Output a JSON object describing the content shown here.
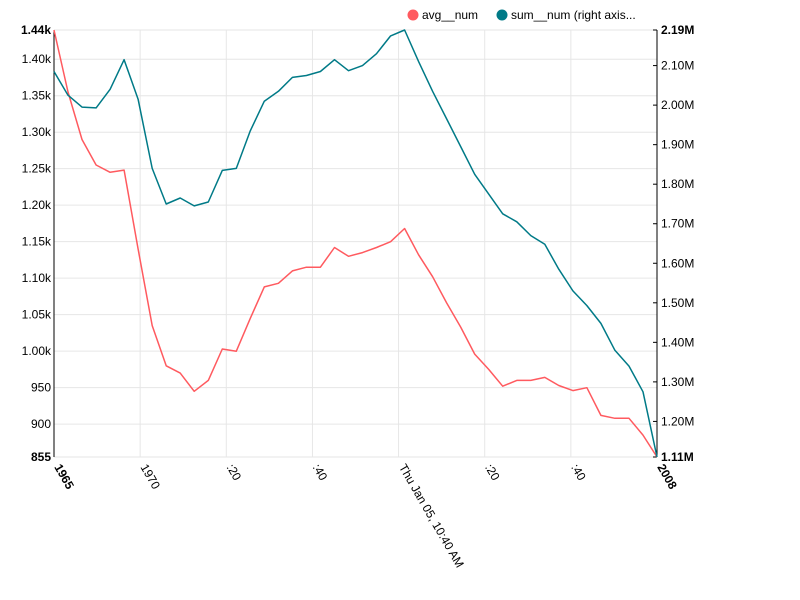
{
  "chart_data": {
    "type": "line",
    "grid": true,
    "legend_position": "top-right",
    "x_ticks": [
      "1965",
      "1970",
      ":20",
      ":40",
      "Thu Jan 05, 10:40 AM",
      ":20",
      ":40",
      "2008"
    ],
    "x": [
      1965,
      1966,
      1967,
      1968,
      1969,
      1970,
      1971,
      1972,
      1973,
      1974,
      1975,
      1976,
      1977,
      1978,
      1979,
      1980,
      1981,
      1982,
      1983,
      1984,
      1985,
      1986,
      1987,
      1988,
      1989,
      1990,
      1991,
      1992,
      1993,
      1994,
      1995,
      1996,
      1997,
      1998,
      1999,
      2000,
      2001,
      2002,
      2003,
      2004,
      2005,
      2006,
      2007,
      2008
    ],
    "xlim": [
      1965,
      2008
    ],
    "y_left": {
      "ticks": [
        "855",
        "900",
        "950",
        "1.00k",
        "1.05k",
        "1.10k",
        "1.15k",
        "1.20k",
        "1.25k",
        "1.30k",
        "1.35k",
        "1.40k",
        "1.44k"
      ],
      "tick_values": [
        855,
        900,
        950,
        1000,
        1050,
        1100,
        1150,
        1200,
        1250,
        1300,
        1350,
        1400,
        1440
      ],
      "ylim": [
        855,
        1440
      ]
    },
    "y_right": {
      "ticks": [
        "1.11M",
        "1.20M",
        "1.30M",
        "1.40M",
        "1.50M",
        "1.60M",
        "1.70M",
        "1.80M",
        "1.90M",
        "2.00M",
        "2.10M",
        "2.19M"
      ],
      "tick_values": [
        1110000,
        1200000,
        1300000,
        1400000,
        1500000,
        1600000,
        1700000,
        1800000,
        1900000,
        2000000,
        2100000,
        2190000
      ],
      "ylim": [
        1110000,
        2190000
      ]
    },
    "series": [
      {
        "name": "avg__num",
        "color": "#ff5a5f",
        "axis": "left",
        "values": [
          1440,
          1355,
          1290,
          1255,
          1245,
          1248,
          1140,
          1035,
          980,
          970,
          945,
          960,
          1003,
          1000,
          1045,
          1088,
          1093,
          1110,
          1115,
          1115,
          1142,
          1130,
          1135,
          1142,
          1150,
          1168,
          1132,
          1102,
          1066,
          1033,
          996,
          975,
          952,
          960,
          960,
          964,
          953,
          946,
          950,
          912,
          908,
          908,
          885,
          855
        ]
      },
      {
        "name": "sum__num (right axis...",
        "color": "#007a87",
        "axis": "right",
        "values": [
          2085000,
          2025000,
          1995000,
          1993000,
          2040000,
          2115000,
          2015000,
          1840000,
          1750000,
          1765000,
          1745000,
          1755000,
          1835000,
          1840000,
          1935000,
          2010000,
          2035000,
          2070000,
          2075000,
          2085000,
          2115000,
          2087000,
          2100000,
          2130000,
          2175000,
          2190000,
          2110000,
          2035000,
          1965000,
          1895000,
          1825000,
          1775000,
          1725000,
          1705000,
          1670000,
          1648000,
          1585000,
          1530000,
          1493000,
          1448000,
          1380000,
          1340000,
          1275000,
          1110000
        ]
      }
    ]
  }
}
